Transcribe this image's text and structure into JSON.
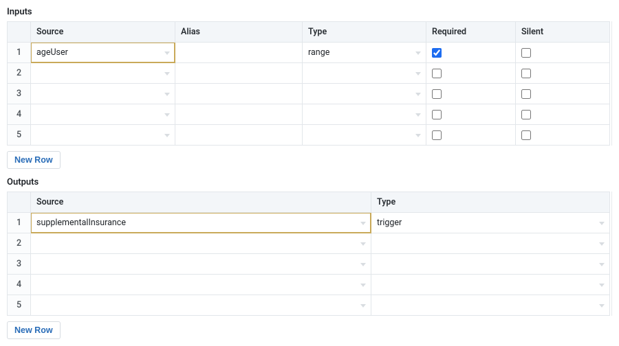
{
  "inputs": {
    "title": "Inputs",
    "headers": {
      "source": "Source",
      "alias": "Alias",
      "type": "Type",
      "required": "Required",
      "silent": "Silent"
    },
    "rows": [
      {
        "n": "1",
        "source": "ageUser",
        "alias": "",
        "type": "range",
        "required": true,
        "silent": false,
        "highlight": true
      },
      {
        "n": "2",
        "source": "",
        "alias": "",
        "type": "",
        "required": false,
        "silent": false,
        "highlight": false
      },
      {
        "n": "3",
        "source": "",
        "alias": "",
        "type": "",
        "required": false,
        "silent": false,
        "highlight": false
      },
      {
        "n": "4",
        "source": "",
        "alias": "",
        "type": "",
        "required": false,
        "silent": false,
        "highlight": false
      },
      {
        "n": "5",
        "source": "",
        "alias": "",
        "type": "",
        "required": false,
        "silent": false,
        "highlight": false
      }
    ],
    "new_row_label": "New Row",
    "scrollbar": {
      "thumb_top_pct": 2,
      "thumb_height_pct": 80
    }
  },
  "outputs": {
    "title": "Outputs",
    "headers": {
      "source": "Source",
      "type": "Type"
    },
    "rows": [
      {
        "n": "1",
        "source": "supplementalInsurance",
        "type": "trigger",
        "highlight": true
      },
      {
        "n": "2",
        "source": "",
        "type": "",
        "highlight": false
      },
      {
        "n": "3",
        "source": "",
        "type": "",
        "highlight": false
      },
      {
        "n": "4",
        "source": "",
        "type": "",
        "highlight": false
      },
      {
        "n": "5",
        "source": "",
        "type": "",
        "highlight": false
      }
    ],
    "new_row_label": "New Row",
    "scrollbar": {
      "thumb_top_pct": 2,
      "thumb_height_pct": 80
    }
  }
}
